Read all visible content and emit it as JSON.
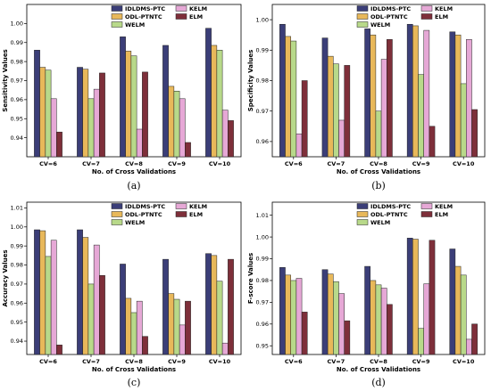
{
  "colors": {
    "IDLDMS-PTC": "#3b3e78",
    "ODL-PTNTC": "#e8b85a",
    "WELM": "#b8d98a",
    "KELM": "#e6a8d6",
    "ELM": "#7e2f3a",
    "edge": "#222222"
  },
  "chart_data": [
    {
      "type": "bar",
      "caption": "(a)",
      "categories": [
        "CV=6",
        "CV=7",
        "CV=8",
        "CV=9",
        "CV=10"
      ],
      "xlabel": "No. of Cross Validations",
      "ylabel": "Sensitivity Values",
      "ylim": [
        0.93,
        1.01
      ],
      "yticks": [
        0.94,
        0.95,
        0.96,
        0.97,
        0.98,
        0.99,
        1.0
      ],
      "yticklabels": [
        "0.94",
        "0.95",
        "0.96",
        "0.97",
        "0.98",
        "0.99",
        "1.00"
      ],
      "legend": "top-center",
      "series": [
        {
          "name": "IDLDMS-PTC",
          "values": [
            0.986,
            0.977,
            0.993,
            0.9885,
            0.9975
          ]
        },
        {
          "name": "ODL-PTNTC",
          "values": [
            0.977,
            0.976,
            0.9855,
            0.967,
            0.9885
          ]
        },
        {
          "name": "WELM",
          "values": [
            0.9755,
            0.9605,
            0.983,
            0.9645,
            0.986
          ]
        },
        {
          "name": "KELM",
          "values": [
            0.9605,
            0.9655,
            0.9445,
            0.9605,
            0.9545
          ]
        },
        {
          "name": "ELM",
          "values": [
            0.943,
            0.974,
            0.9745,
            0.9375,
            0.949
          ]
        }
      ]
    },
    {
      "type": "bar",
      "caption": "(b)",
      "categories": [
        "CV=6",
        "CV=7",
        "CV=8",
        "CV=9",
        "CV=10"
      ],
      "xlabel": "No. of Cross Validations",
      "ylabel": "Specificity Values",
      "ylim": [
        0.955,
        1.005
      ],
      "yticks": [
        0.96,
        0.97,
        0.98,
        0.99,
        1.0
      ],
      "yticklabels": [
        "0.96",
        "0.97",
        "0.98",
        "0.99",
        "1.00"
      ],
      "legend": "top-center",
      "series": [
        {
          "name": "IDLDMS-PTC",
          "values": [
            0.9985,
            0.994,
            0.997,
            0.9985,
            0.996
          ]
        },
        {
          "name": "ODL-PTNTC",
          "values": [
            0.9945,
            0.988,
            0.995,
            0.998,
            0.995
          ]
        },
        {
          "name": "WELM",
          "values": [
            0.993,
            0.9855,
            0.97,
            0.982,
            0.979
          ]
        },
        {
          "name": "KELM",
          "values": [
            0.9625,
            0.967,
            0.987,
            0.9965,
            0.9935
          ]
        },
        {
          "name": "ELM",
          "values": [
            0.98,
            0.985,
            0.9935,
            0.965,
            0.9705
          ]
        }
      ]
    },
    {
      "type": "bar",
      "caption": "(c)",
      "categories": [
        "CV=6",
        "CV=7",
        "CV=8",
        "CV=9",
        "CV=10"
      ],
      "xlabel": "No. of Cross Validations",
      "ylabel": "Accuracy Values",
      "ylim": [
        0.933,
        1.013
      ],
      "yticks": [
        0.94,
        0.95,
        0.96,
        0.97,
        0.98,
        0.99,
        1.0,
        1.01
      ],
      "yticklabels": [
        "0.94",
        "0.95",
        "0.96",
        "0.97",
        "0.98",
        "0.99",
        "1.00",
        "1.01"
      ],
      "legend": "top-center",
      "series": [
        {
          "name": "IDLDMS-PTC",
          "values": [
            0.9985,
            0.9985,
            0.9805,
            0.983,
            0.986
          ]
        },
        {
          "name": "ODL-PTNTC",
          "values": [
            0.998,
            0.9945,
            0.9625,
            0.965,
            0.985
          ]
        },
        {
          "name": "WELM",
          "values": [
            0.9845,
            0.97,
            0.955,
            0.962,
            0.9715
          ]
        },
        {
          "name": "KELM",
          "values": [
            0.993,
            0.9905,
            0.961,
            0.9485,
            0.939
          ]
        },
        {
          "name": "ELM",
          "values": [
            0.938,
            0.9745,
            0.9425,
            0.961,
            0.983
          ]
        }
      ]
    },
    {
      "type": "bar",
      "caption": "(d)",
      "categories": [
        "CV=6",
        "CV=7",
        "CV=8",
        "CV=9",
        "CV=10"
      ],
      "xlabel": "No. of Cross Validations",
      "ylabel": "F-score Values",
      "ylim": [
        0.946,
        1.016
      ],
      "yticks": [
        0.95,
        0.96,
        0.97,
        0.98,
        0.99,
        1.0,
        1.01
      ],
      "yticklabels": [
        "0.95",
        "0.96",
        "0.97",
        "0.98",
        "0.99",
        "1.00",
        "1.01"
      ],
      "legend": "top-center",
      "series": [
        {
          "name": "IDLDMS-PTC",
          "values": [
            0.986,
            0.985,
            0.9865,
            0.9995,
            0.9945
          ]
        },
        {
          "name": "ODL-PTNTC",
          "values": [
            0.9825,
            0.983,
            0.98,
            0.999,
            0.9865
          ]
        },
        {
          "name": "WELM",
          "values": [
            0.98,
            0.9795,
            0.978,
            0.958,
            0.9825
          ]
        },
        {
          "name": "KELM",
          "values": [
            0.981,
            0.974,
            0.9765,
            0.9785,
            0.953
          ]
        },
        {
          "name": "ELM",
          "values": [
            0.9655,
            0.9615,
            0.969,
            0.9985,
            0.96
          ]
        }
      ]
    }
  ]
}
